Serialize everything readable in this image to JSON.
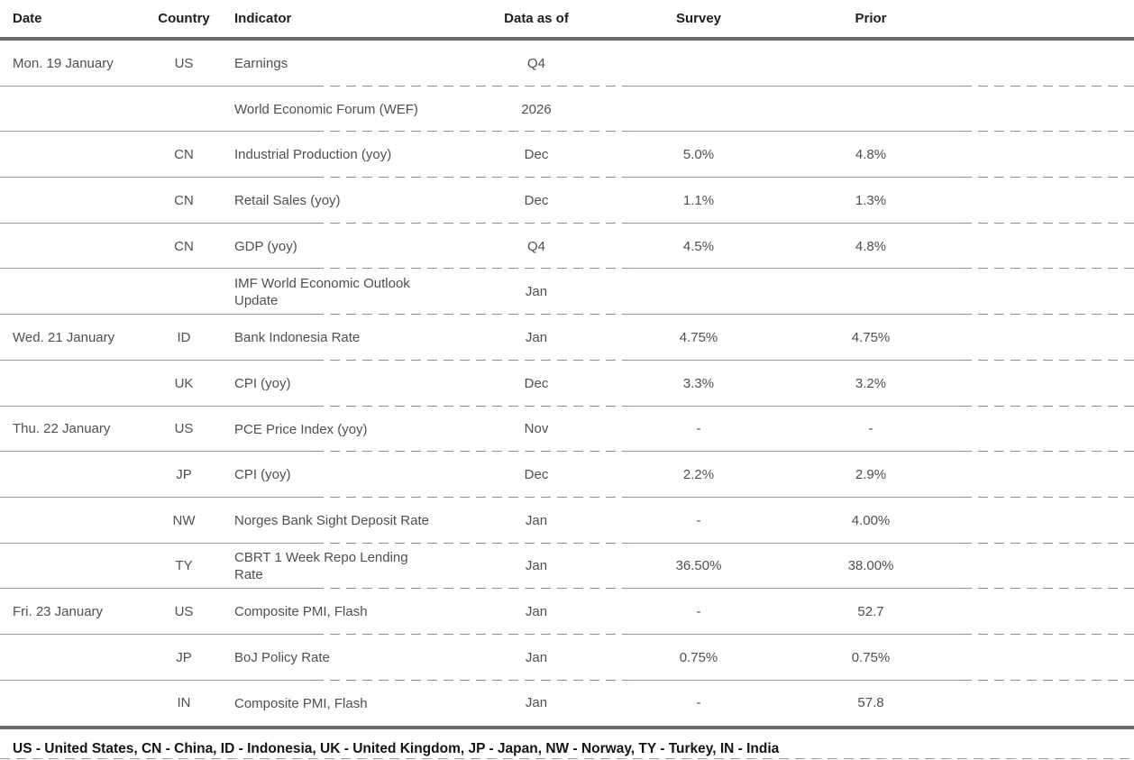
{
  "table": {
    "columns": [
      "Date",
      "Country",
      "Indicator",
      "Data as of",
      "Survey",
      "Prior"
    ],
    "rows": [
      {
        "date": "Mon. 19 January",
        "country": "US",
        "indicator": "Earnings",
        "as_of": "Q4",
        "survey": "",
        "prior": ""
      },
      {
        "date": "",
        "country": "",
        "indicator": "World Economic Forum (WEF)",
        "as_of": "2026",
        "survey": "",
        "prior": ""
      },
      {
        "date": "",
        "country": "CN",
        "indicator": "Industrial Production (yoy)",
        "as_of": "Dec",
        "survey": "5.0%",
        "prior": "4.8%"
      },
      {
        "date": "",
        "country": "CN",
        "indicator": "Retail Sales (yoy)",
        "as_of": "Dec",
        "survey": "1.1%",
        "prior": "1.3%"
      },
      {
        "date": "",
        "country": "CN",
        "indicator": "GDP (yoy)",
        "as_of": "Q4",
        "survey": "4.5%",
        "prior": "4.8%"
      },
      {
        "date": "",
        "country": "",
        "indicator": "IMF World Economic Outlook Update",
        "as_of": "Jan",
        "survey": "",
        "prior": ""
      },
      {
        "date": "Wed. 21 January",
        "country": "ID",
        "indicator": "Bank Indonesia Rate",
        "as_of": "Jan",
        "survey": "4.75%",
        "prior": "4.75%"
      },
      {
        "date": "",
        "country": "UK",
        "indicator": "CPI (yoy)",
        "as_of": "Dec",
        "survey": "3.3%",
        "prior": "3.2%"
      },
      {
        "date": "Thu. 22 January",
        "country": "US",
        "indicator": "PCE Price Index (yoy)",
        "as_of": "Nov",
        "survey": "-",
        "prior": "-"
      },
      {
        "date": "",
        "country": "JP",
        "indicator": "CPI (yoy)",
        "as_of": "Dec",
        "survey": "2.2%",
        "prior": "2.9%"
      },
      {
        "date": "",
        "country": "NW",
        "indicator": "Norges Bank Sight Deposit Rate",
        "as_of": "Jan",
        "survey": "-",
        "prior": "4.00%"
      },
      {
        "date": "",
        "country": "TY",
        "indicator": "CBRT 1 Week Repo Lending Rate",
        "as_of": "Jan",
        "survey": "36.50%",
        "prior": "38.00%"
      },
      {
        "date": "Fri. 23 January",
        "country": "US",
        "indicator": "Composite PMI, Flash",
        "as_of": "Jan",
        "survey": "-",
        "prior": "52.7"
      },
      {
        "date": "",
        "country": "JP",
        "indicator": "BoJ Policy Rate",
        "as_of": "Jan",
        "survey": "0.75%",
        "prior": "0.75%"
      },
      {
        "date": "",
        "country": "IN",
        "indicator": "Composite PMI, Flash",
        "as_of": "Jan",
        "survey": "-",
        "prior": "57.8"
      }
    ]
  },
  "footer": {
    "legend": "US - United States, CN - China, ID - Indonesia, UK - United Kingdom, JP - Japan, NW - Norway, TY - Turkey, IN - India"
  },
  "colors": {
    "thick_rule": "#6a6a6a",
    "row_rule": "#9a9a9a",
    "header_text": "#1f1f1f",
    "body_text": "#4f4f4f",
    "legend_text": "#141414"
  }
}
